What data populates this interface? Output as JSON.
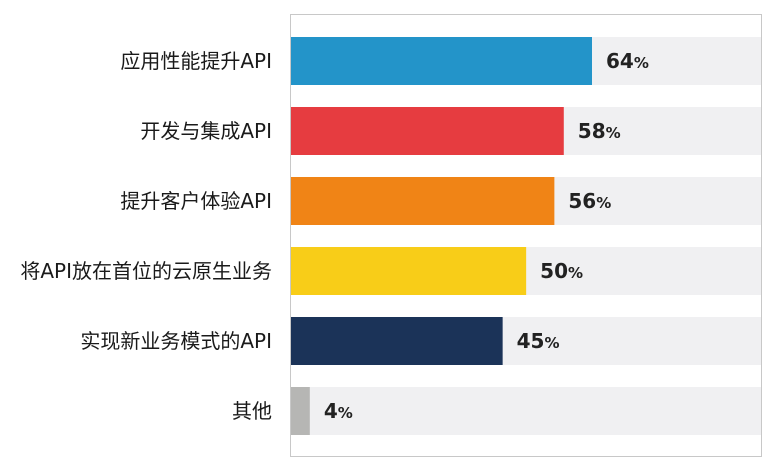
{
  "chart_data": {
    "type": "bar",
    "orientation": "horizontal",
    "categories": [
      "应用性能提升API",
      "开发与集成API",
      "提升客户体验API",
      "将API放在首位的云原生业务",
      "实现新业务模式的API",
      "其他"
    ],
    "values": [
      64,
      58,
      56,
      50,
      45,
      4
    ],
    "value_labels": [
      "64%",
      "58%",
      "56%",
      "50%",
      "45%",
      "4%"
    ],
    "value_unit": "%",
    "xlim": [
      0,
      100
    ],
    "bar_colors": [
      "#2394c9",
      "#e63c40",
      "#f08416",
      "#f8cd18",
      "#1b3358",
      "#b6b6b4"
    ],
    "track_color": "#f0f0f2",
    "frame_color": "#c8c8c8",
    "grid": false,
    "legend": false,
    "title": "",
    "xlabel": "",
    "ylabel": ""
  }
}
